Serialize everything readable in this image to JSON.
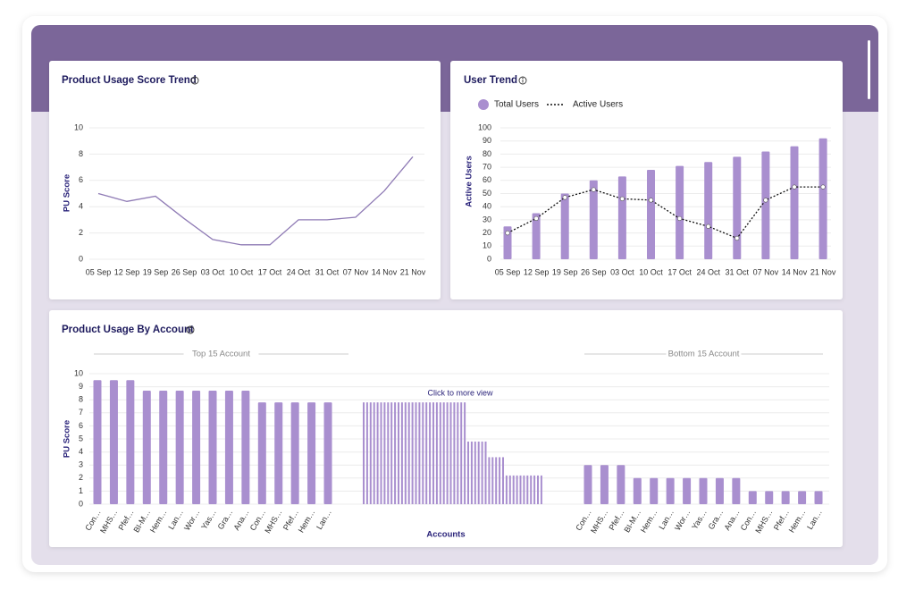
{
  "chart_data": [
    {
      "type": "line",
      "title": "Product Usage Score Trend",
      "y_label": "PU Score",
      "categories": [
        "05 Sep",
        "12 Sep",
        "19 Sep",
        "26 Sep",
        "03 Oct",
        "10 Oct",
        "17 Oct",
        "24 Oct",
        "31 Oct",
        "07 Nov",
        "14 Nov",
        "21 Nov"
      ],
      "values": [
        5.0,
        4.4,
        4.8,
        3.1,
        1.5,
        1.1,
        1.1,
        3.0,
        3.0,
        3.2,
        5.2,
        7.8
      ],
      "color": "#8f7bb5",
      "ylim": [
        0,
        10
      ],
      "yticks": [
        0,
        2,
        4,
        6,
        8,
        10
      ],
      "grid": true
    },
    {
      "type": "bar",
      "title": "User Trend",
      "y_label": "Active Users",
      "categories": [
        "05 Sep",
        "12 Sep",
        "19 Sep",
        "26 Sep",
        "03 Oct",
        "10 Oct",
        "17 Oct",
        "24 Oct",
        "31 Oct",
        "07 Nov",
        "14 Nov",
        "21 Nov"
      ],
      "series": [
        {
          "name": "Total Users",
          "type": "bar",
          "color": "#a98fcf",
          "values": [
            25,
            35,
            50,
            60,
            63,
            68,
            71,
            74,
            78,
            82,
            86,
            92
          ]
        },
        {
          "name": "Active Users",
          "type": "line",
          "color": "#111111",
          "values": [
            20,
            31,
            47,
            53,
            46,
            45,
            31,
            25,
            16,
            45,
            55,
            55
          ]
        }
      ],
      "ylim": [
        0,
        100
      ],
      "yticks": [
        0,
        10,
        20,
        30,
        40,
        50,
        60,
        70,
        80,
        90,
        100
      ],
      "grid": true,
      "legend": "top-left"
    },
    {
      "type": "bar",
      "title": "Product Usage By Account",
      "y_label": "PU Score",
      "x_label": "Accounts",
      "annotation": "Click to more view",
      "color": "#a98fcf",
      "ylim": [
        0,
        10
      ],
      "yticks": [
        0,
        1,
        2,
        3,
        4,
        5,
        6,
        7,
        8,
        9,
        10
      ],
      "grid": true,
      "groups": [
        {
          "label": "Top 15 Account",
          "categories": [
            "Con…",
            "MHS…",
            "Pfef…",
            "BI-M…",
            "Hem…",
            "Lan…",
            "Wor…",
            "Yas…",
            "Gra…",
            "Ana…",
            "Con…",
            "MHS…",
            "Pfef…",
            "Hem…",
            "Lan…"
          ],
          "values": [
            9.5,
            9.5,
            9.5,
            8.7,
            8.7,
            8.7,
            8.7,
            8.7,
            8.7,
            8.7,
            7.8,
            7.8,
            7.8,
            7.8,
            7.8
          ]
        },
        {
          "values": [
            7.8,
            7.8,
            7.8,
            7.8,
            7.8,
            7.8,
            7.8,
            7.8,
            7.8,
            7.8,
            7.8,
            7.8,
            7.8,
            7.8,
            7.8,
            7.8,
            7.8,
            7.8,
            7.8,
            7.8,
            7.8,
            7.8,
            7.8,
            7.8,
            7.8,
            7.8,
            7.8,
            7.8,
            7.8,
            7.8,
            4.8,
            4.8,
            4.8,
            4.8,
            4.8,
            4.8,
            3.6,
            3.6,
            3.6,
            3.6,
            3.6,
            2.2,
            2.2,
            2.2,
            2.2,
            2.2,
            2.2,
            2.2,
            2.2,
            2.2,
            2.2,
            2.2
          ]
        },
        {
          "label": "Bottom 15 Account",
          "categories": [
            "Con…",
            "MHS…",
            "Pfef…",
            "BI-M…",
            "Hem…",
            "Lan…",
            "Wor…",
            "Yas…",
            "Gra…",
            "Ana…",
            "Con…",
            "MHS…",
            "Pfef…",
            "Hem…",
            "Lan…"
          ],
          "values": [
            3,
            3,
            3,
            2,
            2,
            2,
            2,
            2,
            2,
            2,
            1,
            1,
            1,
            1,
            1
          ]
        }
      ]
    }
  ]
}
